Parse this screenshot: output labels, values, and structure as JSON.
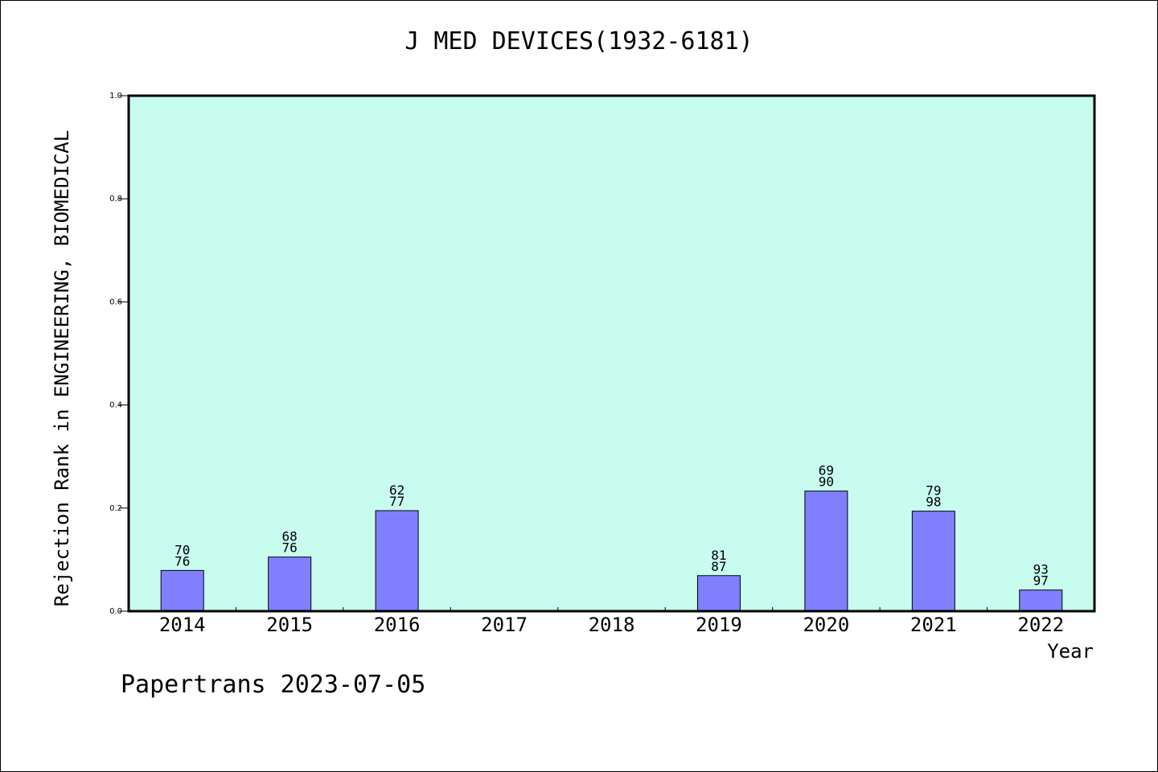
{
  "chart_data": {
    "type": "bar",
    "title": "J MED DEVICES(1932-6181)",
    "ylabel": "Rejection Rank in ENGINEERING, BIOMEDICAL",
    "xlabel": "Year",
    "ylim": [
      0,
      1.0
    ],
    "yticks": [
      "0.0",
      "0.2",
      "0.4",
      "0.6",
      "0.8",
      "1.0"
    ],
    "categories": [
      "2014",
      "2015",
      "2016",
      "2017",
      "2018",
      "2019",
      "2020",
      "2021",
      "2022"
    ],
    "values": [
      0.079,
      0.105,
      0.195,
      0,
      0,
      0.069,
      0.233,
      0.194,
      0.041
    ],
    "labels_top": [
      "70",
      "68",
      "62",
      "",
      "",
      "81",
      "69",
      "79",
      "93"
    ],
    "labels_bottom": [
      "76",
      "76",
      "77",
      "",
      "",
      "87",
      "90",
      "98",
      "97"
    ],
    "grid": false,
    "background_color": "#c8fcee",
    "bar_color": "#8080ff"
  },
  "footer": "Papertrans 2023-07-05"
}
